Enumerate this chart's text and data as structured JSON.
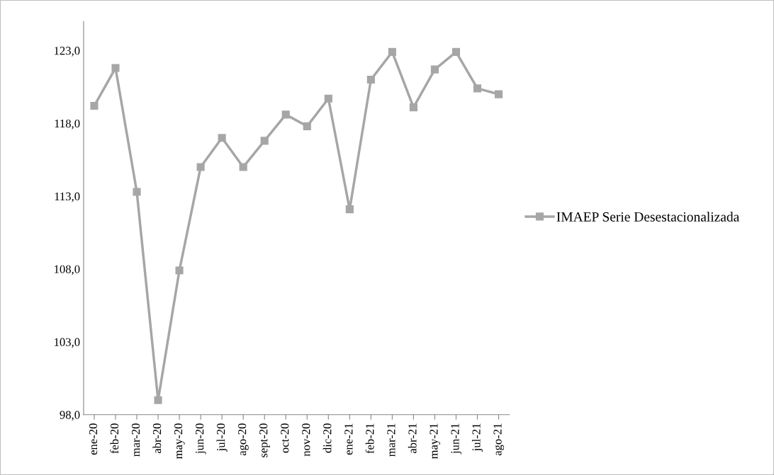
{
  "chart_data": {
    "type": "line",
    "categories": [
      "ene-20",
      "feb-20",
      "mar-20",
      "abr-20",
      "may-20",
      "jun-20",
      "jul-20",
      "ago-20",
      "sept-20",
      "oct-20",
      "nov-20",
      "dic-20",
      "ene-21",
      "feb-21",
      "mar-21",
      "abr-21",
      "may-21",
      "jun-21",
      "jul-21",
      "ago-21"
    ],
    "series": [
      {
        "name": "IMAEP Serie Desestacionalizada",
        "color": "#a6a6a6",
        "values": [
          119.2,
          121.8,
          113.3,
          99.0,
          107.9,
          115.0,
          117.0,
          115.0,
          116.8,
          118.6,
          117.8,
          119.7,
          112.1,
          121.0,
          122.9,
          119.1,
          121.7,
          122.9,
          120.4,
          120.0
        ]
      }
    ],
    "ylim": [
      98,
      125
    ],
    "yticks": [
      {
        "value": 98,
        "label": "98,0"
      },
      {
        "value": 103,
        "label": "103,0"
      },
      {
        "value": 108,
        "label": "108,0"
      },
      {
        "value": 113,
        "label": "113,0"
      },
      {
        "value": 118,
        "label": "118,0"
      },
      {
        "value": 123,
        "label": "123,0"
      }
    ],
    "marker": "square",
    "line_style": "solid",
    "grid": false,
    "legend": "right"
  }
}
